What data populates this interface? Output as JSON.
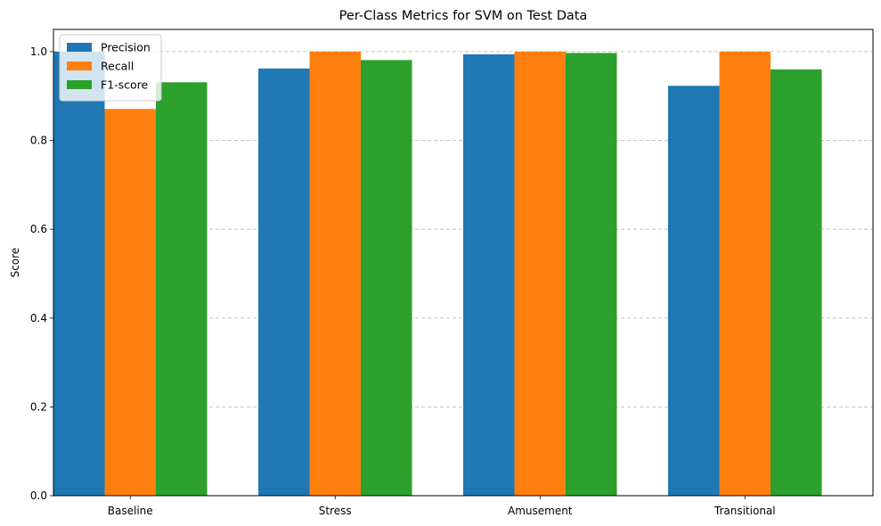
{
  "chart_data": {
    "type": "bar",
    "title": "Per-Class Metrics for SVM on Test Data",
    "xlabel": "",
    "ylabel": "Score",
    "categories": [
      "Baseline",
      "Stress",
      "Amusement",
      "Transitional"
    ],
    "series": [
      {
        "name": "Precision",
        "color": "#1f77b4",
        "values": [
          1.0,
          0.962,
          0.994,
          0.923
        ]
      },
      {
        "name": "Recall",
        "color": "#ff7f0e",
        "values": [
          0.871,
          1.0,
          1.0,
          1.0
        ]
      },
      {
        "name": "F1-score",
        "color": "#2ca02c",
        "values": [
          0.931,
          0.981,
          0.997,
          0.96
        ]
      }
    ],
    "ylim": [
      0,
      1.05
    ],
    "yticks": [
      "0.0",
      "0.2",
      "0.4",
      "0.6",
      "0.8",
      "1.0"
    ],
    "grid": "y-dashed",
    "legend": "top-left"
  }
}
